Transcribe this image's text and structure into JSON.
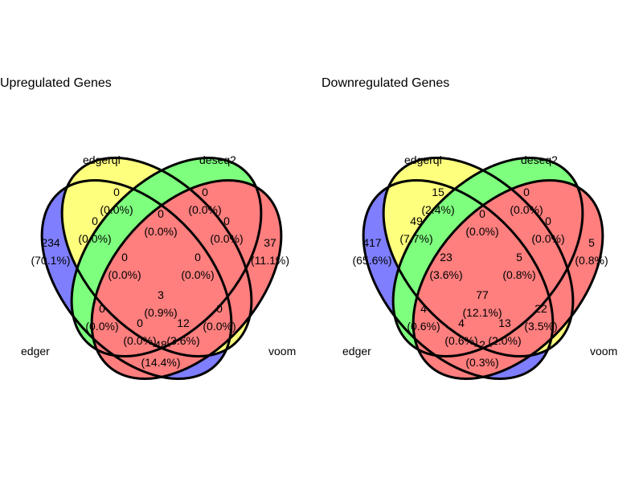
{
  "colors": {
    "edger": "#0000ff",
    "edgerql": "#ffff00",
    "deseq2": "#00ff00",
    "voom": "#ff0000",
    "outline": "#000000"
  },
  "venns": [
    {
      "title": "Upregulated Genes",
      "sets": [
        "edger",
        "edgerql",
        "deseq2",
        "voom"
      ],
      "regions": {
        "edger_only": {
          "count": "234",
          "pct": "(70.1%)"
        },
        "edgerql_only": {
          "count": "0",
          "pct": "(0.0%)"
        },
        "deseq2_only": {
          "count": "0",
          "pct": "(0.0%)"
        },
        "voom_only": {
          "count": "37",
          "pct": "(11.1%)"
        },
        "edger_edgerql": {
          "count": "0",
          "pct": "(0.0%)"
        },
        "edgerql_deseq2": {
          "count": "0",
          "pct": "(0.0%)"
        },
        "deseq2_voom": {
          "count": "0",
          "pct": "(0.0%)"
        },
        "edger_edgerql_deseq2": {
          "count": "0",
          "pct": "(0.0%)"
        },
        "edgerql_deseq2_voom": {
          "count": "0",
          "pct": "(0.0%)"
        },
        "all": {
          "count": "3",
          "pct": "(0.9%)"
        },
        "edger_deseq2": {
          "count": "0",
          "pct": "(0.0%)"
        },
        "edgerql_voom": {
          "count": "0",
          "pct": "(0.0%)"
        },
        "edger_deseq2_voom": {
          "count": "0",
          "pct": "(0.0%)"
        },
        "edger_edgerql_voom": {
          "count": "12",
          "pct": "(3.6%)"
        },
        "edger_voom": {
          "count": "48",
          "pct": "(14.4%)"
        }
      }
    },
    {
      "title": "Downregulated Genes",
      "sets": [
        "edger",
        "edgerql",
        "deseq2",
        "voom"
      ],
      "regions": {
        "edger_only": {
          "count": "417",
          "pct": "(65.6%)"
        },
        "edgerql_only": {
          "count": "15",
          "pct": "(2.4%)"
        },
        "deseq2_only": {
          "count": "0",
          "pct": "(0.0%)"
        },
        "voom_only": {
          "count": "5",
          "pct": "(0.8%)"
        },
        "edger_edgerql": {
          "count": "49",
          "pct": "(7.7%)"
        },
        "edgerql_deseq2": {
          "count": "0",
          "pct": "(0.0%)"
        },
        "deseq2_voom": {
          "count": "0",
          "pct": "(0.0%)"
        },
        "edger_edgerql_deseq2": {
          "count": "23",
          "pct": "(3.6%)"
        },
        "edgerql_deseq2_voom": {
          "count": "5",
          "pct": "(0.8%)"
        },
        "all": {
          "count": "77",
          "pct": "(12.1%)"
        },
        "edger_deseq2": {
          "count": "4",
          "pct": "(0.6%)"
        },
        "edgerql_voom": {
          "count": "22",
          "pct": "(3.5%)"
        },
        "edger_deseq2_voom": {
          "count": "4",
          "pct": "(0.6%)"
        },
        "edger_edgerql_voom": {
          "count": "13",
          "pct": "(2.0%)"
        },
        "edger_voom": {
          "count": "2",
          "pct": "(0.3%)"
        }
      }
    }
  ]
}
